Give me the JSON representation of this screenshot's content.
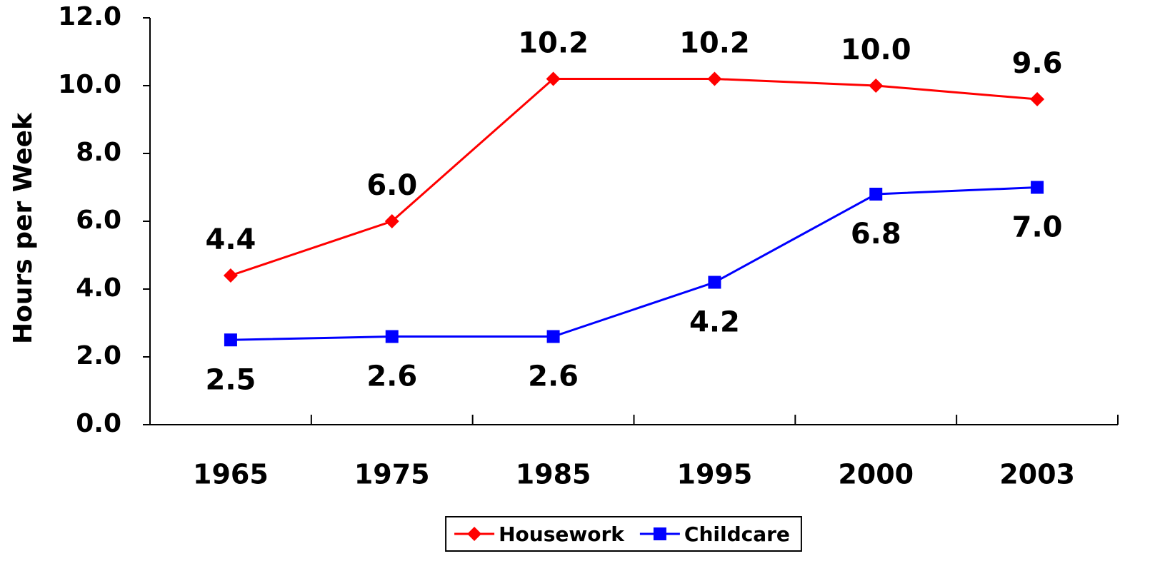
{
  "chart_data": {
    "type": "line",
    "y_label": "Hours per Week",
    "categories": [
      "1965",
      "1975",
      "1985",
      "1995",
      "2000",
      "2003"
    ],
    "series": [
      {
        "name": "Housework",
        "color": "#ff0000",
        "marker": "diamond",
        "label_position": "above",
        "values": [
          4.4,
          6.0,
          10.2,
          10.2,
          10.0,
          9.6
        ],
        "value_labels": [
          "4.4",
          "6.0",
          "10.2",
          "10.2",
          "10.0",
          "9.6"
        ]
      },
      {
        "name": "Childcare",
        "color": "#0000ff",
        "marker": "square",
        "label_position": "below",
        "values": [
          2.5,
          2.6,
          2.6,
          4.2,
          6.8,
          7.0
        ],
        "value_labels": [
          "2.5",
          "2.6",
          "2.6",
          "4.2",
          "6.8",
          "7.0"
        ]
      }
    ],
    "ylim": [
      0,
      12
    ],
    "yticks": [
      {
        "value": 0,
        "label": "0.0"
      },
      {
        "value": 2,
        "label": "2.0"
      },
      {
        "value": 4,
        "label": "4.0"
      },
      {
        "value": 6,
        "label": "6.0"
      },
      {
        "value": 8,
        "label": "8.0"
      },
      {
        "value": 10,
        "label": "10.0"
      },
      {
        "value": 12,
        "label": "12.0"
      }
    ],
    "grid": false,
    "legend": "bottom"
  }
}
